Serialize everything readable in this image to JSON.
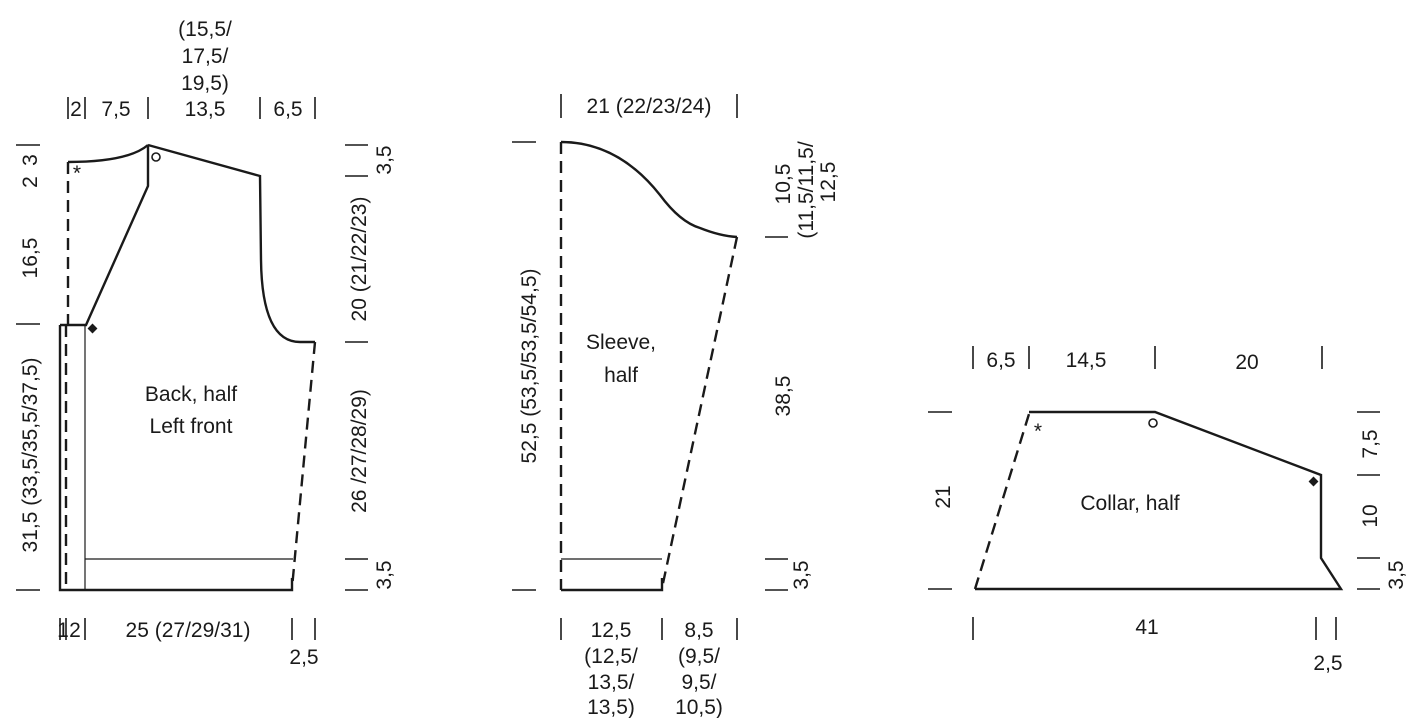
{
  "body": {
    "label_line1": "Back, half",
    "label_line2": "Left front",
    "top_dims": {
      "narrow": "2",
      "shoulder": "7,5",
      "neck_alt_1": "(15,5/",
      "neck_alt_2": "17,5/",
      "neck_alt_3": "19,5)",
      "neck": "13,5",
      "armhole": "6,5"
    },
    "left_dims": {
      "neck_drop": "3",
      "neck_narrow": "2",
      "armhole_height": "16,5",
      "length": "31,5 (33,5/35,5/37,5)"
    },
    "right_dims": {
      "shoulder_slope": "3,5",
      "armhole_depth": "20 (21/22/23)",
      "side_length": "26 /27/28/29)",
      "rib": "3,5"
    },
    "bottom_dims": {
      "band": "1",
      "band2": "2",
      "width": "25 (27/29/31)",
      "side": "2,5"
    },
    "markers": {
      "asterisk": "*"
    }
  },
  "sleeve": {
    "label_line1": "Sleeve,",
    "label_line2": "half",
    "top_dim": "21 (22/23/24)",
    "left_dim": "52,5 (53,5/53,5/54,5)",
    "right_dims": {
      "cap": "10,5",
      "cap_alt_1": "(11,5/11,5/",
      "cap_alt_2": "12,5",
      "length": "38,5",
      "rib": "3,5"
    },
    "bottom_dims": {
      "left_1": "12,5",
      "left_2": "(12,5/",
      "left_3": "13,5/",
      "left_4": "13,5)",
      "right_1": "8,5",
      "right_2": "(9,5/",
      "right_3": "9,5/",
      "right_4": "10,5)"
    }
  },
  "collar": {
    "label": "Collar, half",
    "top_dims": {
      "a": "6,5",
      "b": "14,5",
      "c": "20"
    },
    "left_dim": "21",
    "right_dims": {
      "upper": "7,5",
      "middle": "10",
      "lower": "3,5"
    },
    "bottom_dims": {
      "width": "41",
      "side": "2,5"
    },
    "markers": {
      "asterisk": "*"
    }
  }
}
